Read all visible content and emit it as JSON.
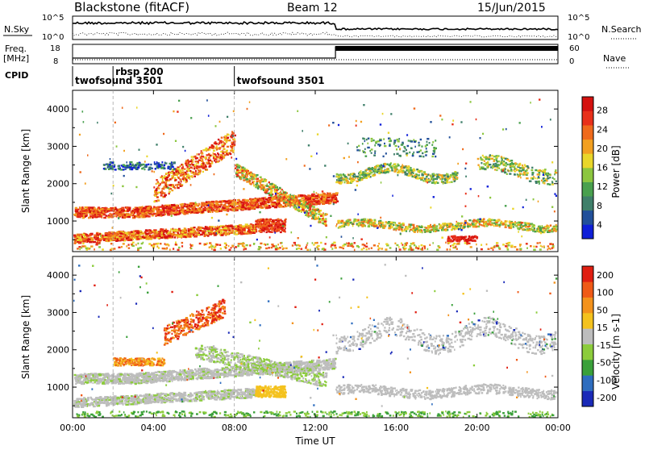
{
  "header": {
    "title": "Blackstone (fitACF)",
    "beam": "Beam 12",
    "date": "15/Jun/2015"
  },
  "panels": {
    "nsky": {
      "label": "N.Sky",
      "right_label": "N.Search",
      "left_ticks": [
        "10^5",
        "10^0"
      ],
      "right_ticks": [
        "10^5",
        "10^0"
      ]
    },
    "freq": {
      "label_lines": [
        "Freq.",
        "[MHz]"
      ],
      "right_label": "Nave",
      "left_ticks": [
        "18",
        "8"
      ],
      "right_ticks": [
        "60",
        "0"
      ],
      "step_time_hours": 13.0
    },
    "cpid": {
      "label": "CPID",
      "entries": [
        {
          "text": "twofsound 3501",
          "start_hours": 0.0
        },
        {
          "text": "rbsp 200",
          "start_hours": 2.0
        },
        {
          "text": "twofsound 3501",
          "start_hours": 8.0
        }
      ]
    }
  },
  "chart_data": [
    {
      "type": "heatmap",
      "quantity": "power",
      "ylabel": "Slant Range [km]",
      "xlim": [
        0,
        24
      ],
      "ylim": [
        180,
        4500
      ],
      "yticks": [
        1000,
        2000,
        3000,
        4000
      ],
      "colorbar": {
        "label": "Power [dB]",
        "ticks": [
          "4",
          "8",
          "12",
          "16",
          "20",
          "24",
          "28"
        ],
        "colors": [
          "#0f1fd8",
          "#22509a",
          "#3f7f6a",
          "#49a04e",
          "#8cc63f",
          "#e9d62a",
          "#f2a021",
          "#ef6a1c",
          "#e8301a",
          "#d4110f"
        ]
      }
    },
    {
      "type": "heatmap",
      "quantity": "velocity",
      "ylabel": "Slant Range [km]",
      "xlabel": "Time UT",
      "xlim": [
        0,
        24
      ],
      "ylim": [
        180,
        4500
      ],
      "yticks": [
        1000,
        2000,
        3000,
        4000
      ],
      "xticks": [
        "00:00",
        "04:00",
        "08:00",
        "12:00",
        "16:00",
        "20:00",
        "00:00"
      ],
      "colorbar": {
        "label": "Velocity [m s-1]",
        "ticks": [
          "200",
          "100",
          "50",
          "15",
          "-15",
          "-50",
          "-100",
          "-200"
        ],
        "colors": [
          "#1a2ab8",
          "#2e6dbf",
          "#3aa03a",
          "#8ccc3c",
          "#bdbdbd",
          "#f4c21e",
          "#f3921c",
          "#ef5a17",
          "#e01f12"
        ]
      }
    }
  ]
}
